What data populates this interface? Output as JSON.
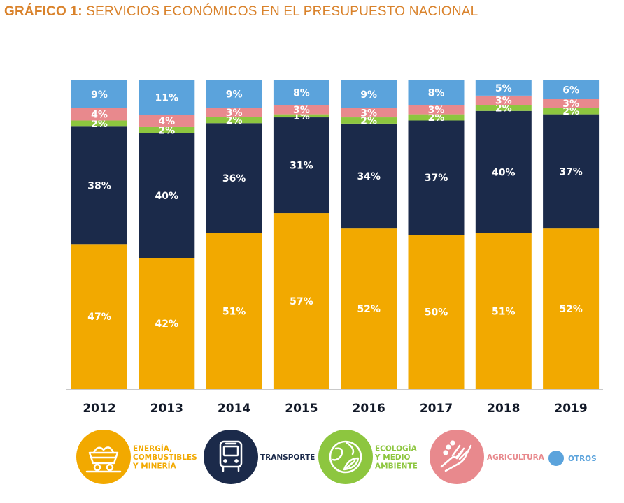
{
  "title": {
    "prefix": "GRÁFICO 1:",
    "text": "SERVICIOS ECONÓMICOS EN EL PRESUPUESTO NACIONAL"
  },
  "colors": {
    "energia": "#f2a900",
    "transporte": "#1b2a4a",
    "ecologia": "#8dc63f",
    "agricultura": "#e8898d",
    "otros": "#5ba3dc",
    "title": "#d9822b"
  },
  "chart_data": {
    "type": "bar",
    "stacked": true,
    "normalized": true,
    "title": "GRÁFICO 1: SERVICIOS ECONÓMICOS EN EL PRESUPUESTO NACIONAL",
    "categories": [
      "2012",
      "2013",
      "2014",
      "2015",
      "2016",
      "2017",
      "2018",
      "2019"
    ],
    "series": [
      {
        "key": "energia",
        "name": "ENERGÍA, COMBUSTIBLES Y MINERÍA",
        "values": [
          47,
          42,
          51,
          57,
          52,
          50,
          51,
          52
        ]
      },
      {
        "key": "transporte",
        "name": "TRANSPORTE",
        "values": [
          38,
          40,
          36,
          31,
          34,
          37,
          40,
          37
        ]
      },
      {
        "key": "ecologia",
        "name": "ECOLOGÍA Y MEDIO AMBIENTE",
        "values": [
          2,
          2,
          2,
          1,
          2,
          2,
          2,
          2
        ]
      },
      {
        "key": "agricultura",
        "name": "AGRICULTURA",
        "values": [
          4,
          4,
          3,
          3,
          3,
          3,
          3,
          3
        ]
      },
      {
        "key": "otros",
        "name": "OTROS",
        "values": [
          9,
          11,
          9,
          8,
          9,
          8,
          5,
          6
        ]
      }
    ],
    "ylim": [
      0,
      100
    ],
    "xlabel": "",
    "ylabel": ""
  },
  "legend": [
    {
      "key": "energia",
      "lines": [
        "ENERGÍA,",
        "COMBUSTIBLES",
        "Y MINERÍA"
      ],
      "icon": "mining-cart-icon"
    },
    {
      "key": "transporte",
      "lines": [
        "TRANSPORTE"
      ],
      "icon": "bus-icon"
    },
    {
      "key": "ecologia",
      "lines": [
        "ECOLOGÍA",
        "Y MEDIO",
        "AMBIENTE"
      ],
      "icon": "globe-leaf-icon"
    },
    {
      "key": "agricultura",
      "lines": [
        "AGRICULTURA"
      ],
      "icon": "hands-seeds-icon"
    },
    {
      "key": "otros",
      "lines": [
        "OTROS"
      ],
      "icon": "dot-icon"
    }
  ]
}
